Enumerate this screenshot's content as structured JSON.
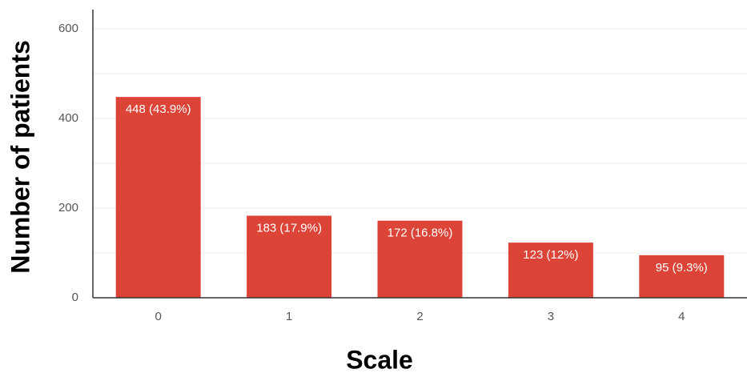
{
  "chart_data": {
    "type": "bar",
    "title": "",
    "xlabel": "Scale",
    "ylabel": "Number of patients",
    "categories": [
      "0",
      "1",
      "2",
      "3",
      "4"
    ],
    "values": [
      448,
      183,
      172,
      123,
      95
    ],
    "data_labels": [
      "448 (43.9%)",
      "183 (17.9%)",
      "172 (16.8%)",
      "123 (12%)",
      "95 (9.3%)"
    ],
    "ylim": [
      0,
      650
    ],
    "y_ticks": [
      0,
      200,
      400,
      600
    ],
    "y_tick_labels": [
      "0",
      "200",
      "400",
      "600"
    ],
    "grid": true,
    "legend": "none",
    "colors": {
      "bar": "#db4437",
      "grid": "#ececec",
      "baseline": "#333333",
      "axis_line": "#333333",
      "data_label": "#ffffff",
      "tick_label": "#555555"
    }
  }
}
